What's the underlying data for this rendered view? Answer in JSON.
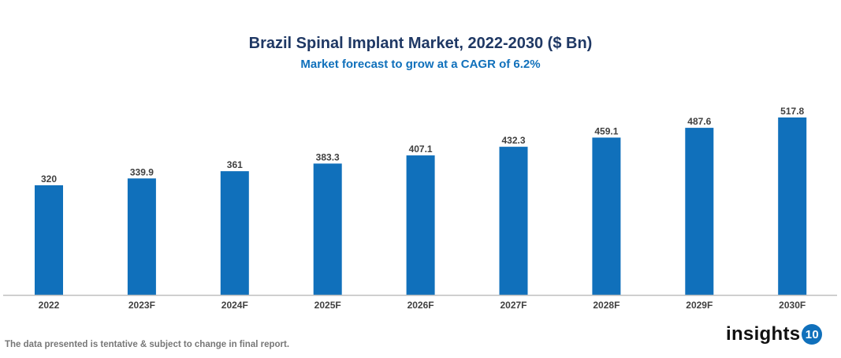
{
  "chart_data": {
    "type": "bar",
    "title": "Brazil Spinal Implant Market, 2022-2030 ($ Bn)",
    "subtitle": "Market forecast to grow at a CAGR of 6.2%",
    "categories": [
      "2022",
      "2023F",
      "2024F",
      "2025F",
      "2026F",
      "2027F",
      "2028F",
      "2029F",
      "2030F"
    ],
    "values": [
      320,
      339.9,
      361,
      383.3,
      407.1,
      432.3,
      459.1,
      487.6,
      517.8
    ],
    "value_labels": [
      "320",
      "339.9",
      "361",
      "383.3",
      "407.1",
      "432.3",
      "459.1",
      "487.6",
      "517.8"
    ],
    "ylim": [
      0,
      600
    ],
    "grid": false,
    "legend": "none",
    "bar_color": "#1070bb"
  },
  "footnote": "The data presented is tentative & subject to change in final report.",
  "logo": {
    "text": "insights",
    "badge": "10"
  }
}
